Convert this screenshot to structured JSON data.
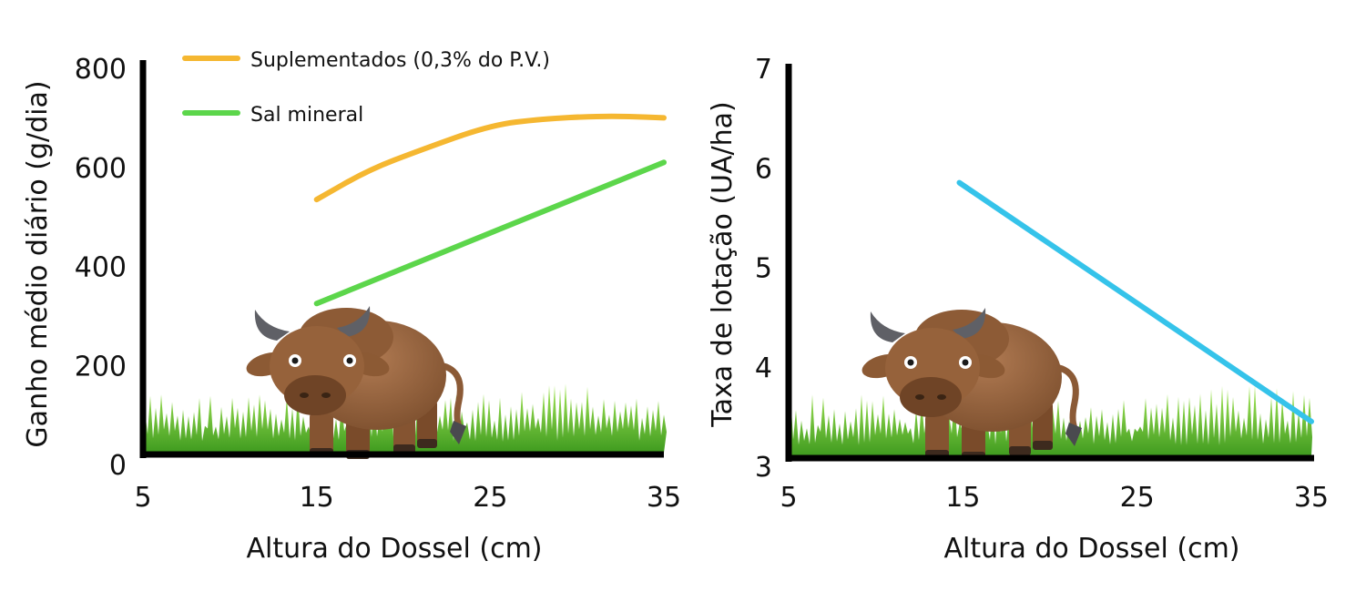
{
  "chart_data": [
    {
      "type": "line",
      "xlabel": "Altura do Dossel (cm)",
      "ylabel": "Ganho médio diário (g/dia)",
      "xlim": [
        5,
        35
      ],
      "ylim": [
        0,
        800
      ],
      "xticks": [
        5,
        15,
        25,
        35
      ],
      "yticks": [
        0,
        200,
        400,
        600,
        800
      ],
      "legend_position": "top-left",
      "grid": false,
      "series": [
        {
          "name": "Suplementados (0,3% do P.V.)",
          "color": "#f5b731",
          "x": [
            15,
            18,
            21,
            25,
            28,
            31,
            33,
            35
          ],
          "y": [
            535,
            595,
            635,
            685,
            698,
            703,
            703,
            700
          ]
        },
        {
          "name": "Sal mineral",
          "color": "#5cd64b",
          "x": [
            15,
            35
          ],
          "y": [
            325,
            610
          ]
        }
      ],
      "decoration": "cartoon-bull-on-grass"
    },
    {
      "type": "line",
      "xlabel": "Altura do Dossel (cm)",
      "ylabel": "Taxa de lotação (UA/ha)",
      "xlim": [
        5,
        35
      ],
      "ylim": [
        3,
        7
      ],
      "xticks": [
        5,
        15,
        25,
        35
      ],
      "yticks": [
        3,
        4,
        5,
        6,
        7
      ],
      "grid": false,
      "series": [
        {
          "color": "#35c3ea",
          "x": [
            14.8,
            35
          ],
          "y": [
            5.85,
            3.45
          ]
        }
      ],
      "decoration": "cartoon-bull-on-grass"
    }
  ]
}
